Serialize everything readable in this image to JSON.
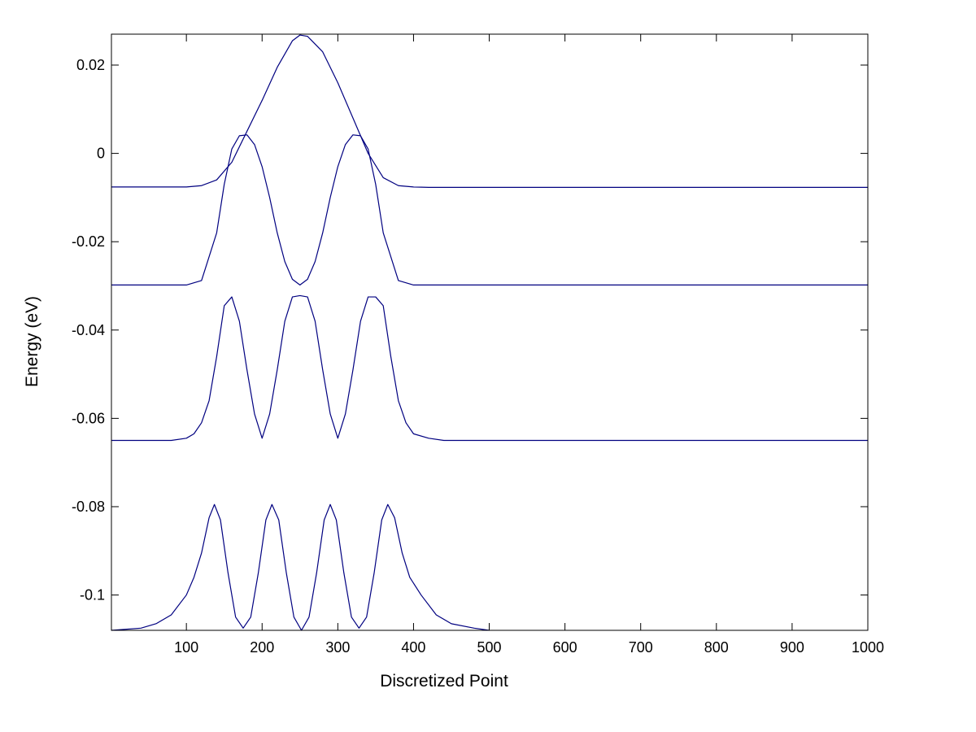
{
  "chart_data": {
    "type": "line",
    "title": "",
    "xlabel": "Discretized Point",
    "ylabel": "Energy (eV)",
    "xlim": [
      1,
      1000
    ],
    "ylim": [
      -0.108,
      0.027
    ],
    "xticks": [
      100,
      200,
      300,
      400,
      500,
      600,
      700,
      800,
      900,
      1000
    ],
    "xtick_labels": [
      "100",
      "200",
      "300",
      "400",
      "500",
      "600",
      "700",
      "800",
      "900",
      "1000"
    ],
    "yticks": [
      0.02,
      0,
      -0.02,
      -0.04,
      -0.06,
      -0.08,
      -0.1
    ],
    "ytick_labels": [
      "0.02",
      "0",
      "-0.02",
      "-0.04",
      "-0.06",
      "-0.08",
      "-0.1"
    ],
    "grid": false,
    "legend": "none",
    "colors": {
      "line": "#000080",
      "axes": "#000000",
      "background": "#ffffff"
    },
    "series": [
      {
        "x": [
          1,
          100,
          120,
          140,
          160,
          180,
          200,
          220,
          240,
          250,
          260,
          280,
          300,
          320,
          340,
          360,
          380,
          400,
          420,
          500,
          600,
          800,
          1000
        ],
        "y": [
          -0.0076,
          -0.0076,
          -0.0073,
          -0.006,
          -0.002,
          0.005,
          0.012,
          0.0195,
          0.0255,
          0.0268,
          0.0265,
          0.023,
          0.016,
          0.008,
          0.0,
          -0.0055,
          -0.0073,
          -0.0076,
          -0.0077,
          -0.0077,
          -0.0077,
          -0.0077,
          -0.0077
        ]
      },
      {
        "x": [
          1,
          100,
          120,
          140,
          150,
          160,
          170,
          180,
          190,
          200,
          210,
          220,
          230,
          240,
          250,
          260,
          270,
          280,
          290,
          300,
          310,
          320,
          330,
          340,
          350,
          360,
          380,
          400,
          500,
          1000
        ],
        "y": [
          -0.0298,
          -0.0298,
          -0.0288,
          -0.018,
          -0.007,
          0.001,
          0.004,
          0.0042,
          0.002,
          -0.003,
          -0.01,
          -0.018,
          -0.0245,
          -0.0285,
          -0.0298,
          -0.0285,
          -0.0245,
          -0.018,
          -0.01,
          -0.003,
          0.002,
          0.0042,
          0.004,
          0.001,
          -0.007,
          -0.018,
          -0.0288,
          -0.0298,
          -0.0298,
          -0.0298
        ]
      },
      {
        "x": [
          1,
          80,
          100,
          110,
          120,
          130,
          140,
          150,
          160,
          170,
          180,
          190,
          200,
          210,
          220,
          230,
          240,
          250,
          260,
          270,
          280,
          290,
          300,
          310,
          320,
          330,
          340,
          350,
          360,
          370,
          380,
          390,
          400,
          420,
          440,
          500,
          1000
        ],
        "y": [
          -0.065,
          -0.065,
          -0.0645,
          -0.0635,
          -0.061,
          -0.056,
          -0.046,
          -0.0345,
          -0.0325,
          -0.038,
          -0.049,
          -0.059,
          -0.0645,
          -0.059,
          -0.049,
          -0.038,
          -0.0325,
          -0.0322,
          -0.0325,
          -0.038,
          -0.049,
          -0.059,
          -0.0645,
          -0.059,
          -0.049,
          -0.038,
          -0.0325,
          -0.0325,
          -0.0345,
          -0.046,
          -0.056,
          -0.061,
          -0.0635,
          -0.0645,
          -0.065,
          -0.065,
          -0.065
        ]
      },
      {
        "x": [
          1,
          40,
          60,
          80,
          100,
          110,
          120,
          130,
          137,
          145,
          155,
          165,
          175,
          185,
          195,
          205,
          213,
          222,
          232,
          242,
          252,
          262,
          272,
          282,
          290,
          298,
          308,
          318,
          328,
          338,
          348,
          358,
          366,
          375,
          385,
          395,
          410,
          430,
          450,
          480,
          500
        ],
        "y": [
          -0.108,
          -0.1075,
          -0.1065,
          -0.1045,
          -0.1,
          -0.096,
          -0.0905,
          -0.0825,
          -0.0795,
          -0.083,
          -0.095,
          -0.105,
          -0.1075,
          -0.105,
          -0.095,
          -0.083,
          -0.0795,
          -0.083,
          -0.095,
          -0.105,
          -0.108,
          -0.105,
          -0.095,
          -0.083,
          -0.0795,
          -0.083,
          -0.095,
          -0.105,
          -0.1075,
          -0.105,
          -0.095,
          -0.083,
          -0.0795,
          -0.0825,
          -0.0905,
          -0.096,
          -0.1,
          -0.1045,
          -0.1065,
          -0.1075,
          -0.108
        ]
      }
    ]
  }
}
